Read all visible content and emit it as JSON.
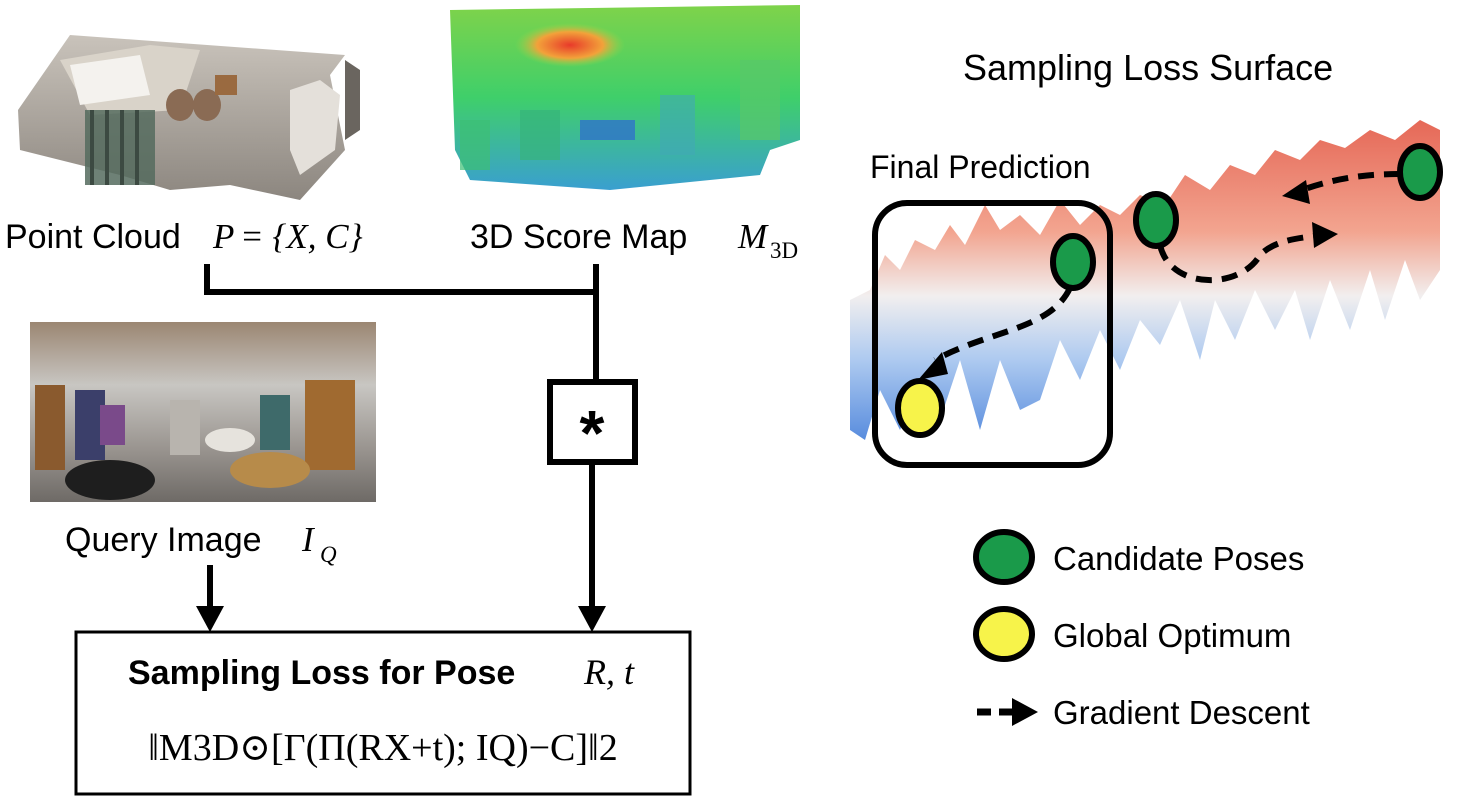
{
  "inputs": {
    "point_cloud": {
      "label": "Point Cloud",
      "symbol": "P",
      "set": "= {X, C}"
    },
    "score_map": {
      "label": "3D Score Map",
      "symbol": "M",
      "subscript": "3D"
    },
    "query_image": {
      "label": "Query Image",
      "symbol": "I",
      "subscript": "Q"
    }
  },
  "operator": {
    "symbol": "*"
  },
  "loss_box": {
    "title": "Sampling Loss for Pose",
    "pose_vars": "R, t",
    "formula": "‖M3D⊙[Γ(Π(RX+t); IQ)−C]‖2"
  },
  "surface": {
    "title": "Sampling Loss Surface",
    "final_prediction_label": "Final Prediction"
  },
  "legend": {
    "items": [
      {
        "label": "Candidate Poses",
        "color": "#1a9a4a"
      },
      {
        "label": "Global Optimum",
        "color": "#f7f34a"
      },
      {
        "label": "Gradient Descent"
      }
    ]
  }
}
